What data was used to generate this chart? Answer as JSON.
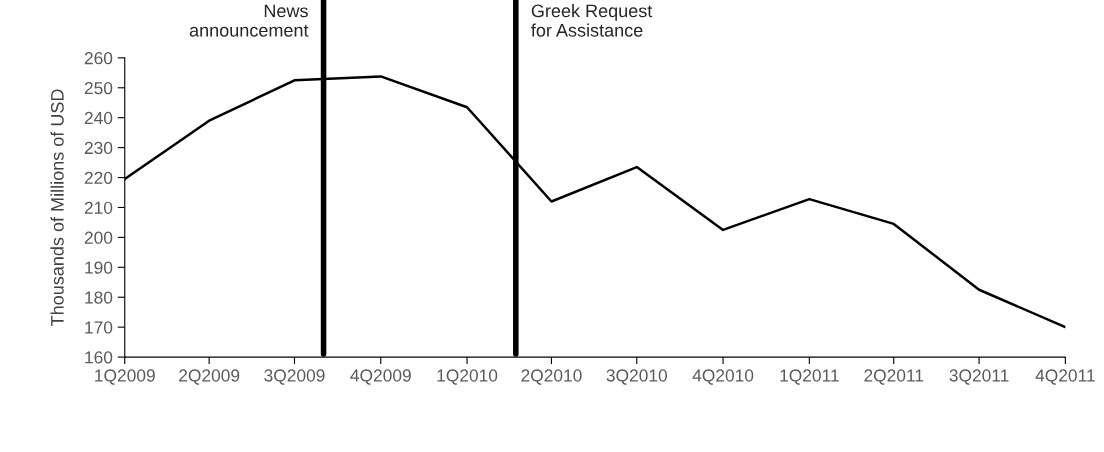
{
  "chart_data": {
    "type": "line",
    "ylabel": "Thousands of Millions of USD",
    "x": [
      "2009-01",
      "2009-04",
      "2009-07",
      "2009-10",
      "2010-01",
      "2010-04",
      "2010-07",
      "2010-10",
      "2011-01",
      "2011-04",
      "2011-07",
      "2011-10"
    ],
    "series": [
      {
        "color": "#000000",
        "values": [
          219.5,
          239,
          252.5,
          253.8,
          243.5,
          212,
          223.5,
          202.5,
          212.8,
          204.5,
          182.5,
          170
        ]
      }
    ],
    "xlim": [
      "2009-01",
      "2011-10"
    ],
    "xticks": [
      {
        "value": "2009-01",
        "label": "1Q2009"
      },
      {
        "value": "2009-04",
        "label": "2Q2009"
      },
      {
        "value": "2009-07",
        "label": "3Q2009"
      },
      {
        "value": "2009-10",
        "label": "4Q2009"
      },
      {
        "value": "2010-01",
        "label": "1Q2010"
      },
      {
        "value": "2010-04",
        "label": "2Q2010"
      },
      {
        "value": "2010-07",
        "label": "3Q2010"
      },
      {
        "value": "2010-10",
        "label": "4Q2010"
      },
      {
        "value": "2011-01",
        "label": "1Q2011"
      },
      {
        "value": "2011-04",
        "label": "2Q2011"
      },
      {
        "value": "2011-07",
        "label": "3Q2011"
      },
      {
        "value": "2011-10",
        "label": "4Q2011"
      }
    ],
    "ylim": [
      160,
      260
    ],
    "yticks": [
      160,
      170,
      180,
      190,
      200,
      210,
      220,
      230,
      240,
      250,
      260
    ],
    "ref_lines": [
      {
        "axis": "x",
        "value": "2009-08-01",
        "label": "News\nannouncement",
        "color": "#000000"
      },
      {
        "axis": "x",
        "value": "2010-02-22",
        "label": "Greek Request\nfor Assistance",
        "color": "#000000"
      }
    ],
    "grid": false,
    "legend": false,
    "marker": "none",
    "line_style": "solid"
  }
}
